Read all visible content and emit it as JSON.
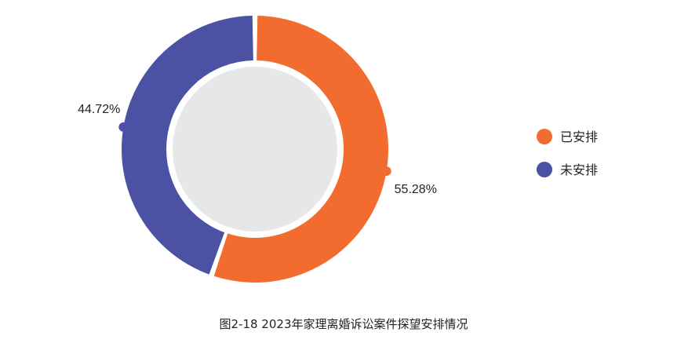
{
  "chart_data": {
    "type": "pie",
    "variant": "donut",
    "title": "图2-18  2023年家理离婚诉讼案件探望安排情况",
    "slices": [
      {
        "name": "已安排",
        "value": 55.28,
        "label": "55.28%",
        "color": "#F26C30"
      },
      {
        "name": "未安排",
        "value": 44.72,
        "label": "44.72%",
        "color": "#4B52A3"
      }
    ],
    "center_color": "#E6E7E8",
    "legend_position": "right"
  }
}
